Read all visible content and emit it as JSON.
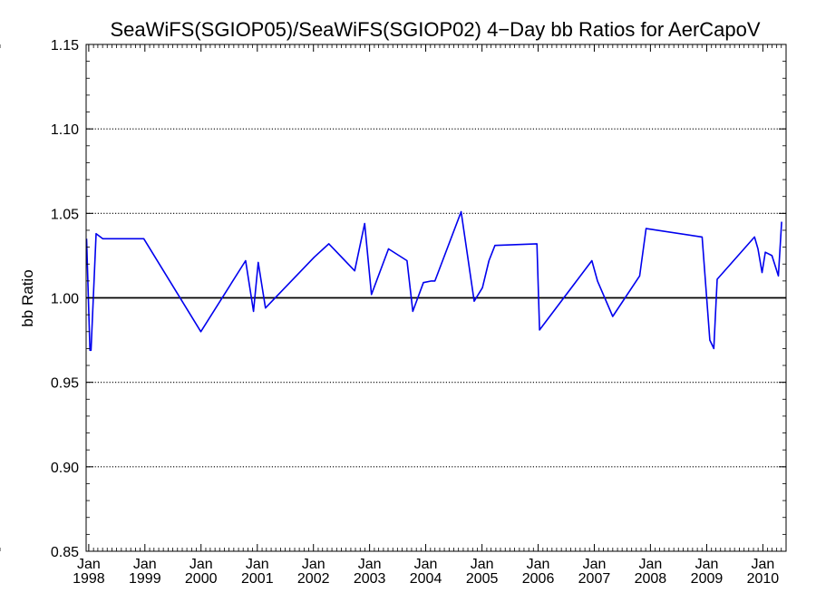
{
  "chart_data": {
    "type": "line",
    "title": "SeaWiFS(SGIOP05)/SeaWiFS(SGIOP02) 4−Day bb Ratios for AerCapoV",
    "xlabel": "",
    "ylabel": "bb Ratio",
    "xlim": [
      "1997-12-15",
      "2010-06-01"
    ],
    "ylim": [
      0.85,
      1.15
    ],
    "y_ticks": [
      0.85,
      0.9,
      0.95,
      1.0,
      1.05,
      1.1,
      1.15
    ],
    "y_tick_labels": [
      "0.85",
      "0.90",
      "0.95",
      "1.00",
      "1.05",
      "1.10",
      "1.15"
    ],
    "x_ticks": [
      "1998-01-01",
      "1999-01-01",
      "2000-01-01",
      "2001-01-01",
      "2002-01-01",
      "2003-01-01",
      "2004-01-01",
      "2005-01-01",
      "2006-01-01",
      "2007-01-01",
      "2008-01-01",
      "2009-01-01",
      "2010-01-01"
    ],
    "x_tick_labels": [
      {
        "month": "Jan",
        "year": "1998"
      },
      {
        "month": "Jan",
        "year": "1999"
      },
      {
        "month": "Jan",
        "year": "2000"
      },
      {
        "month": "Jan",
        "year": "2001"
      },
      {
        "month": "Jan",
        "year": "2002"
      },
      {
        "month": "Jan",
        "year": "2003"
      },
      {
        "month": "Jan",
        "year": "2004"
      },
      {
        "month": "Jan",
        "year": "2005"
      },
      {
        "month": "Jan",
        "year": "2006"
      },
      {
        "month": "Jan",
        "year": "2007"
      },
      {
        "month": "Jan",
        "year": "2008"
      },
      {
        "month": "Jan",
        "year": "2009"
      },
      {
        "month": "Jan",
        "year": "2010"
      }
    ],
    "grid": "horizontal dotted",
    "reference_line": 1.0,
    "series": [
      {
        "color": "#0000ee",
        "x": [
          "1997-12-18",
          "1998-01-09",
          "1998-01-16",
          "1998-02-18",
          "1998-04-02",
          "1998-12-25",
          "1999-12-31",
          "2000-10-17",
          "2000-12-07",
          "2001-01-07",
          "2001-02-23",
          "2002-01-05",
          "2002-04-11",
          "2002-09-26",
          "2002-11-07",
          "2002-11-30",
          "2003-01-13",
          "2003-05-04",
          "2003-09-01",
          "2003-10-09",
          "2003-12-17",
          "2004-02-07",
          "2004-03-01",
          "2004-08-18",
          "2004-11-11",
          "2005-01-04",
          "2005-02-15",
          "2005-03-26",
          "2005-12-24",
          "2006-01-10",
          "2006-12-16",
          "2007-01-22",
          "2007-05-01",
          "2007-10-23",
          "2007-12-04",
          "2008-12-02",
          "2009-01-21",
          "2009-02-16",
          "2009-03-10",
          "2009-11-08",
          "2009-11-30",
          "2009-12-27",
          "2010-01-17",
          "2010-03-01",
          "2010-04-12",
          "2010-05-03"
        ],
        "y": [
          1.035,
          0.969,
          0.969,
          1.038,
          1.035,
          1.035,
          0.98,
          1.022,
          0.992,
          1.021,
          0.994,
          1.024,
          1.032,
          1.016,
          1.034,
          1.044,
          1.002,
          1.029,
          1.022,
          0.992,
          1.009,
          1.01,
          1.01,
          1.051,
          0.998,
          1.006,
          1.022,
          1.031,
          1.032,
          0.981,
          1.022,
          1.01,
          0.989,
          1.013,
          1.041,
          1.036,
          0.975,
          0.97,
          1.011,
          1.036,
          1.029,
          1.015,
          1.027,
          1.025,
          1.013,
          1.045
        ]
      }
    ]
  }
}
